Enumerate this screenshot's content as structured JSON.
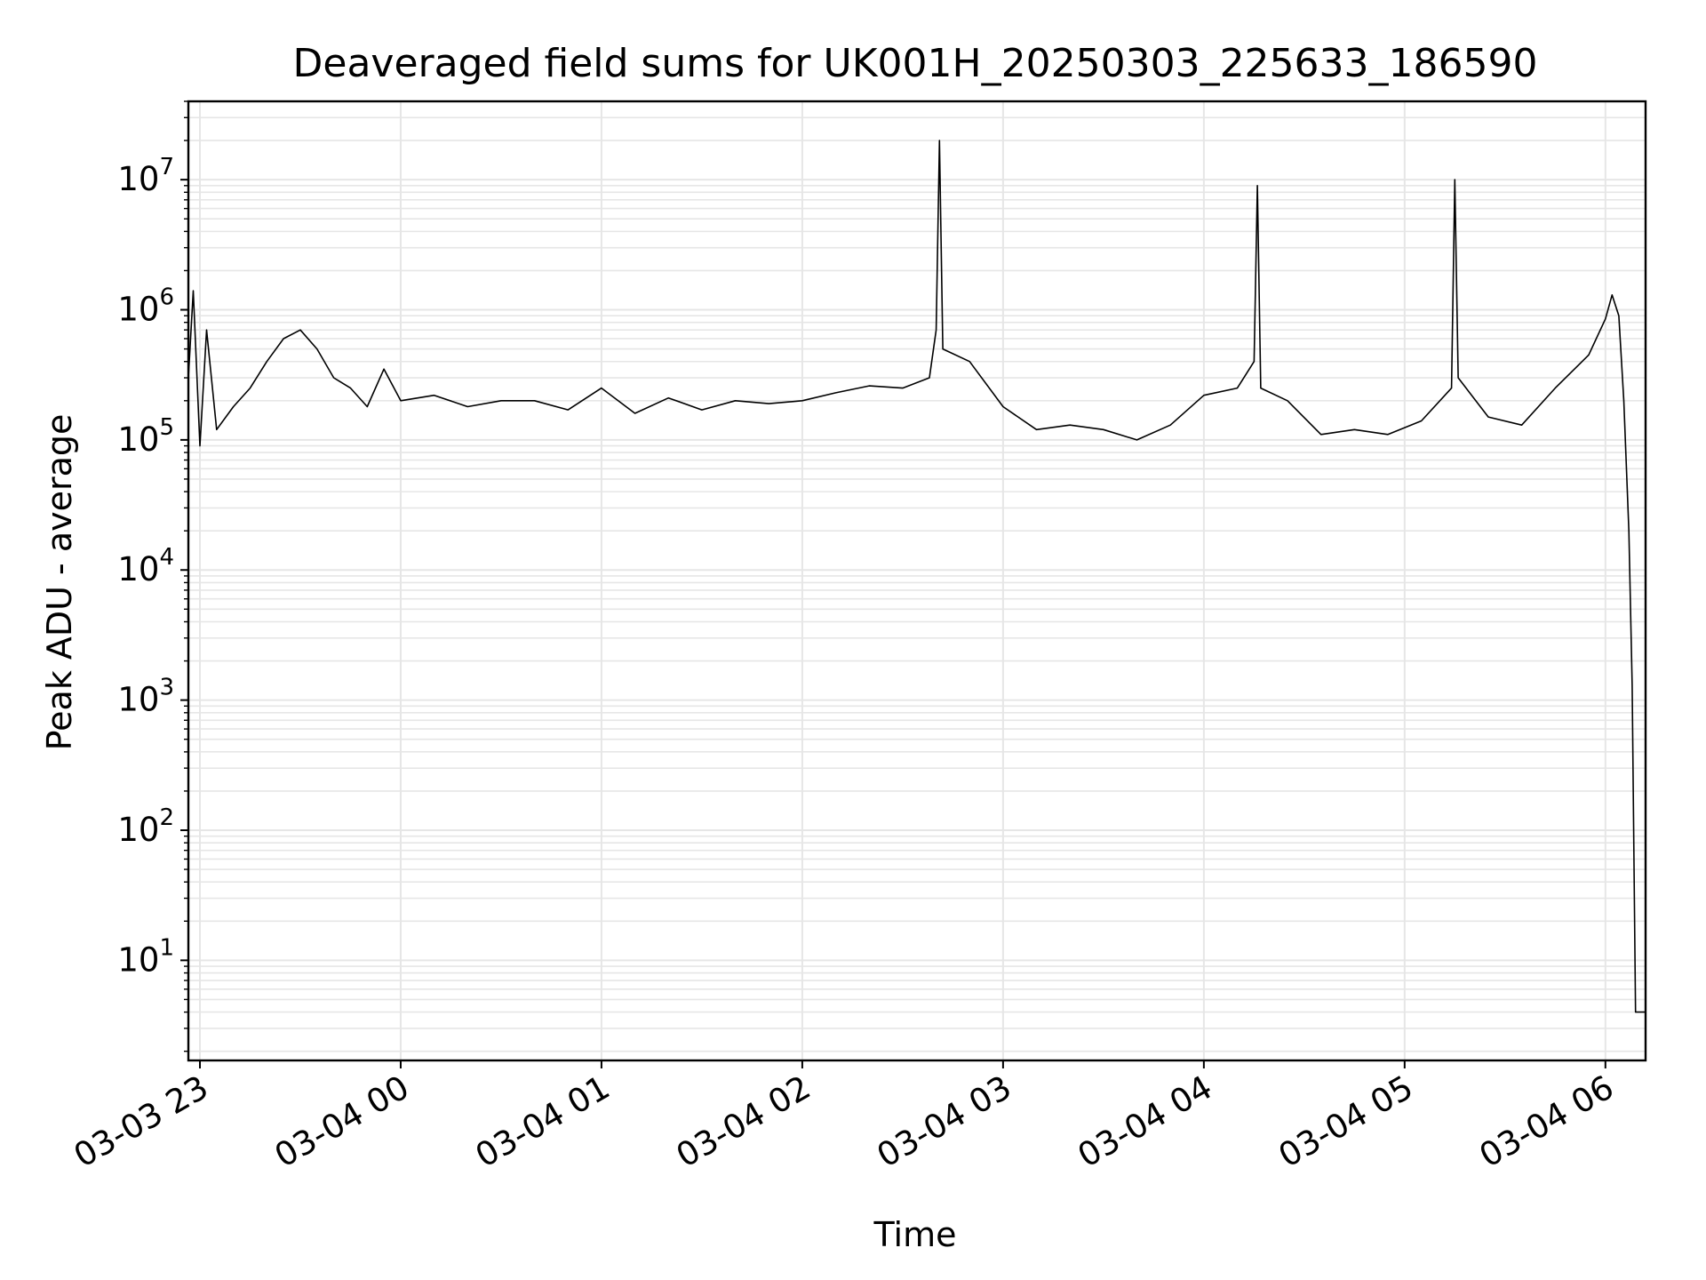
{
  "chart_data": {
    "type": "line",
    "title": "Deaveraged field sums for UK001H_20250303_225633_186590",
    "xlabel": "Time",
    "ylabel": "Peak ADU - average",
    "yscale": "log",
    "ylim": [
      1.7,
      40000000
    ],
    "xlim": [
      "2025-03-03 22:56:33",
      "2025-03-04 06:12:00"
    ],
    "grid": true,
    "line_color": "#000000",
    "grid_color": "#e6e6e6",
    "x_ticks": [
      {
        "time": "2025-03-03 23:00",
        "label": "03-03 23"
      },
      {
        "time": "2025-03-04 00:00",
        "label": "03-04 00"
      },
      {
        "time": "2025-03-04 01:00",
        "label": "03-04 01"
      },
      {
        "time": "2025-03-04 02:00",
        "label": "03-04 02"
      },
      {
        "time": "2025-03-04 03:00",
        "label": "03-04 03"
      },
      {
        "time": "2025-03-04 04:00",
        "label": "03-04 04"
      },
      {
        "time": "2025-03-04 05:00",
        "label": "03-04 05"
      },
      {
        "time": "2025-03-04 06:00",
        "label": "03-04 06"
      }
    ],
    "y_ticks": [
      {
        "value": 10,
        "base": "10",
        "exp": "1"
      },
      {
        "value": 100,
        "base": "10",
        "exp": "2"
      },
      {
        "value": 1000,
        "base": "10",
        "exp": "3"
      },
      {
        "value": 10000,
        "base": "10",
        "exp": "4"
      },
      {
        "value": 100000,
        "base": "10",
        "exp": "5"
      },
      {
        "value": 1000000,
        "base": "10",
        "exp": "6"
      },
      {
        "value": 10000000,
        "base": "10",
        "exp": "7"
      }
    ],
    "series": [
      {
        "x": [
          "2025-03-03 22:56:33",
          "2025-03-03 22:58:00",
          "2025-03-03 23:00:00",
          "2025-03-03 23:02:00",
          "2025-03-03 23:05:00",
          "2025-03-03 23:10:00",
          "2025-03-03 23:15:00",
          "2025-03-03 23:20:00",
          "2025-03-03 23:25:00",
          "2025-03-03 23:30:00",
          "2025-03-03 23:35:00",
          "2025-03-03 23:40:00",
          "2025-03-03 23:45:00",
          "2025-03-03 23:50:00",
          "2025-03-03 23:55:00",
          "2025-03-04 00:00:00",
          "2025-03-04 00:10:00",
          "2025-03-04 00:20:00",
          "2025-03-04 00:30:00",
          "2025-03-04 00:40:00",
          "2025-03-04 00:50:00",
          "2025-03-04 01:00:00",
          "2025-03-04 01:10:00",
          "2025-03-04 01:20:00",
          "2025-03-04 01:30:00",
          "2025-03-04 01:40:00",
          "2025-03-04 01:50:00",
          "2025-03-04 02:00:00",
          "2025-03-04 02:10:00",
          "2025-03-04 02:20:00",
          "2025-03-04 02:30:00",
          "2025-03-04 02:38:00",
          "2025-03-04 02:40:00",
          "2025-03-04 02:41:00",
          "2025-03-04 02:42:00",
          "2025-03-04 02:50:00",
          "2025-03-04 03:00:00",
          "2025-03-04 03:10:00",
          "2025-03-04 03:20:00",
          "2025-03-04 03:30:00",
          "2025-03-04 03:40:00",
          "2025-03-04 03:50:00",
          "2025-03-04 04:00:00",
          "2025-03-04 04:10:00",
          "2025-03-04 04:15:00",
          "2025-03-04 04:16:00",
          "2025-03-04 04:17:00",
          "2025-03-04 04:25:00",
          "2025-03-04 04:35:00",
          "2025-03-04 04:45:00",
          "2025-03-04 04:55:00",
          "2025-03-04 05:05:00",
          "2025-03-04 05:14:00",
          "2025-03-04 05:15:00",
          "2025-03-04 05:16:00",
          "2025-03-04 05:25:00",
          "2025-03-04 05:35:00",
          "2025-03-04 05:45:00",
          "2025-03-04 05:55:00",
          "2025-03-04 06:00:00",
          "2025-03-04 06:02:00",
          "2025-03-04 06:04:00",
          "2025-03-04 06:05:30",
          "2025-03-04 06:07:00",
          "2025-03-04 06:08:00",
          "2025-03-04 06:09:00",
          "2025-03-04 06:10:00",
          "2025-03-04 06:11:00",
          "2025-03-04 06:12:00"
        ],
        "y": [
          300000,
          1400000,
          90000,
          700000,
          120000,
          180000,
          250000,
          400000,
          600000,
          700000,
          500000,
          300000,
          250000,
          180000,
          350000,
          200000,
          220000,
          180000,
          200000,
          200000,
          170000,
          250000,
          160000,
          210000,
          170000,
          200000,
          190000,
          200000,
          230000,
          260000,
          250000,
          300000,
          700000,
          20000000,
          500000,
          400000,
          180000,
          120000,
          130000,
          120000,
          100000,
          130000,
          220000,
          250000,
          400000,
          9000000,
          250000,
          200000,
          110000,
          120000,
          110000,
          140000,
          250000,
          10000000,
          300000,
          150000,
          130000,
          250000,
          450000,
          850000,
          1300000,
          900000,
          200000,
          20000,
          1300,
          4,
          4,
          4,
          4
        ]
      }
    ]
  }
}
